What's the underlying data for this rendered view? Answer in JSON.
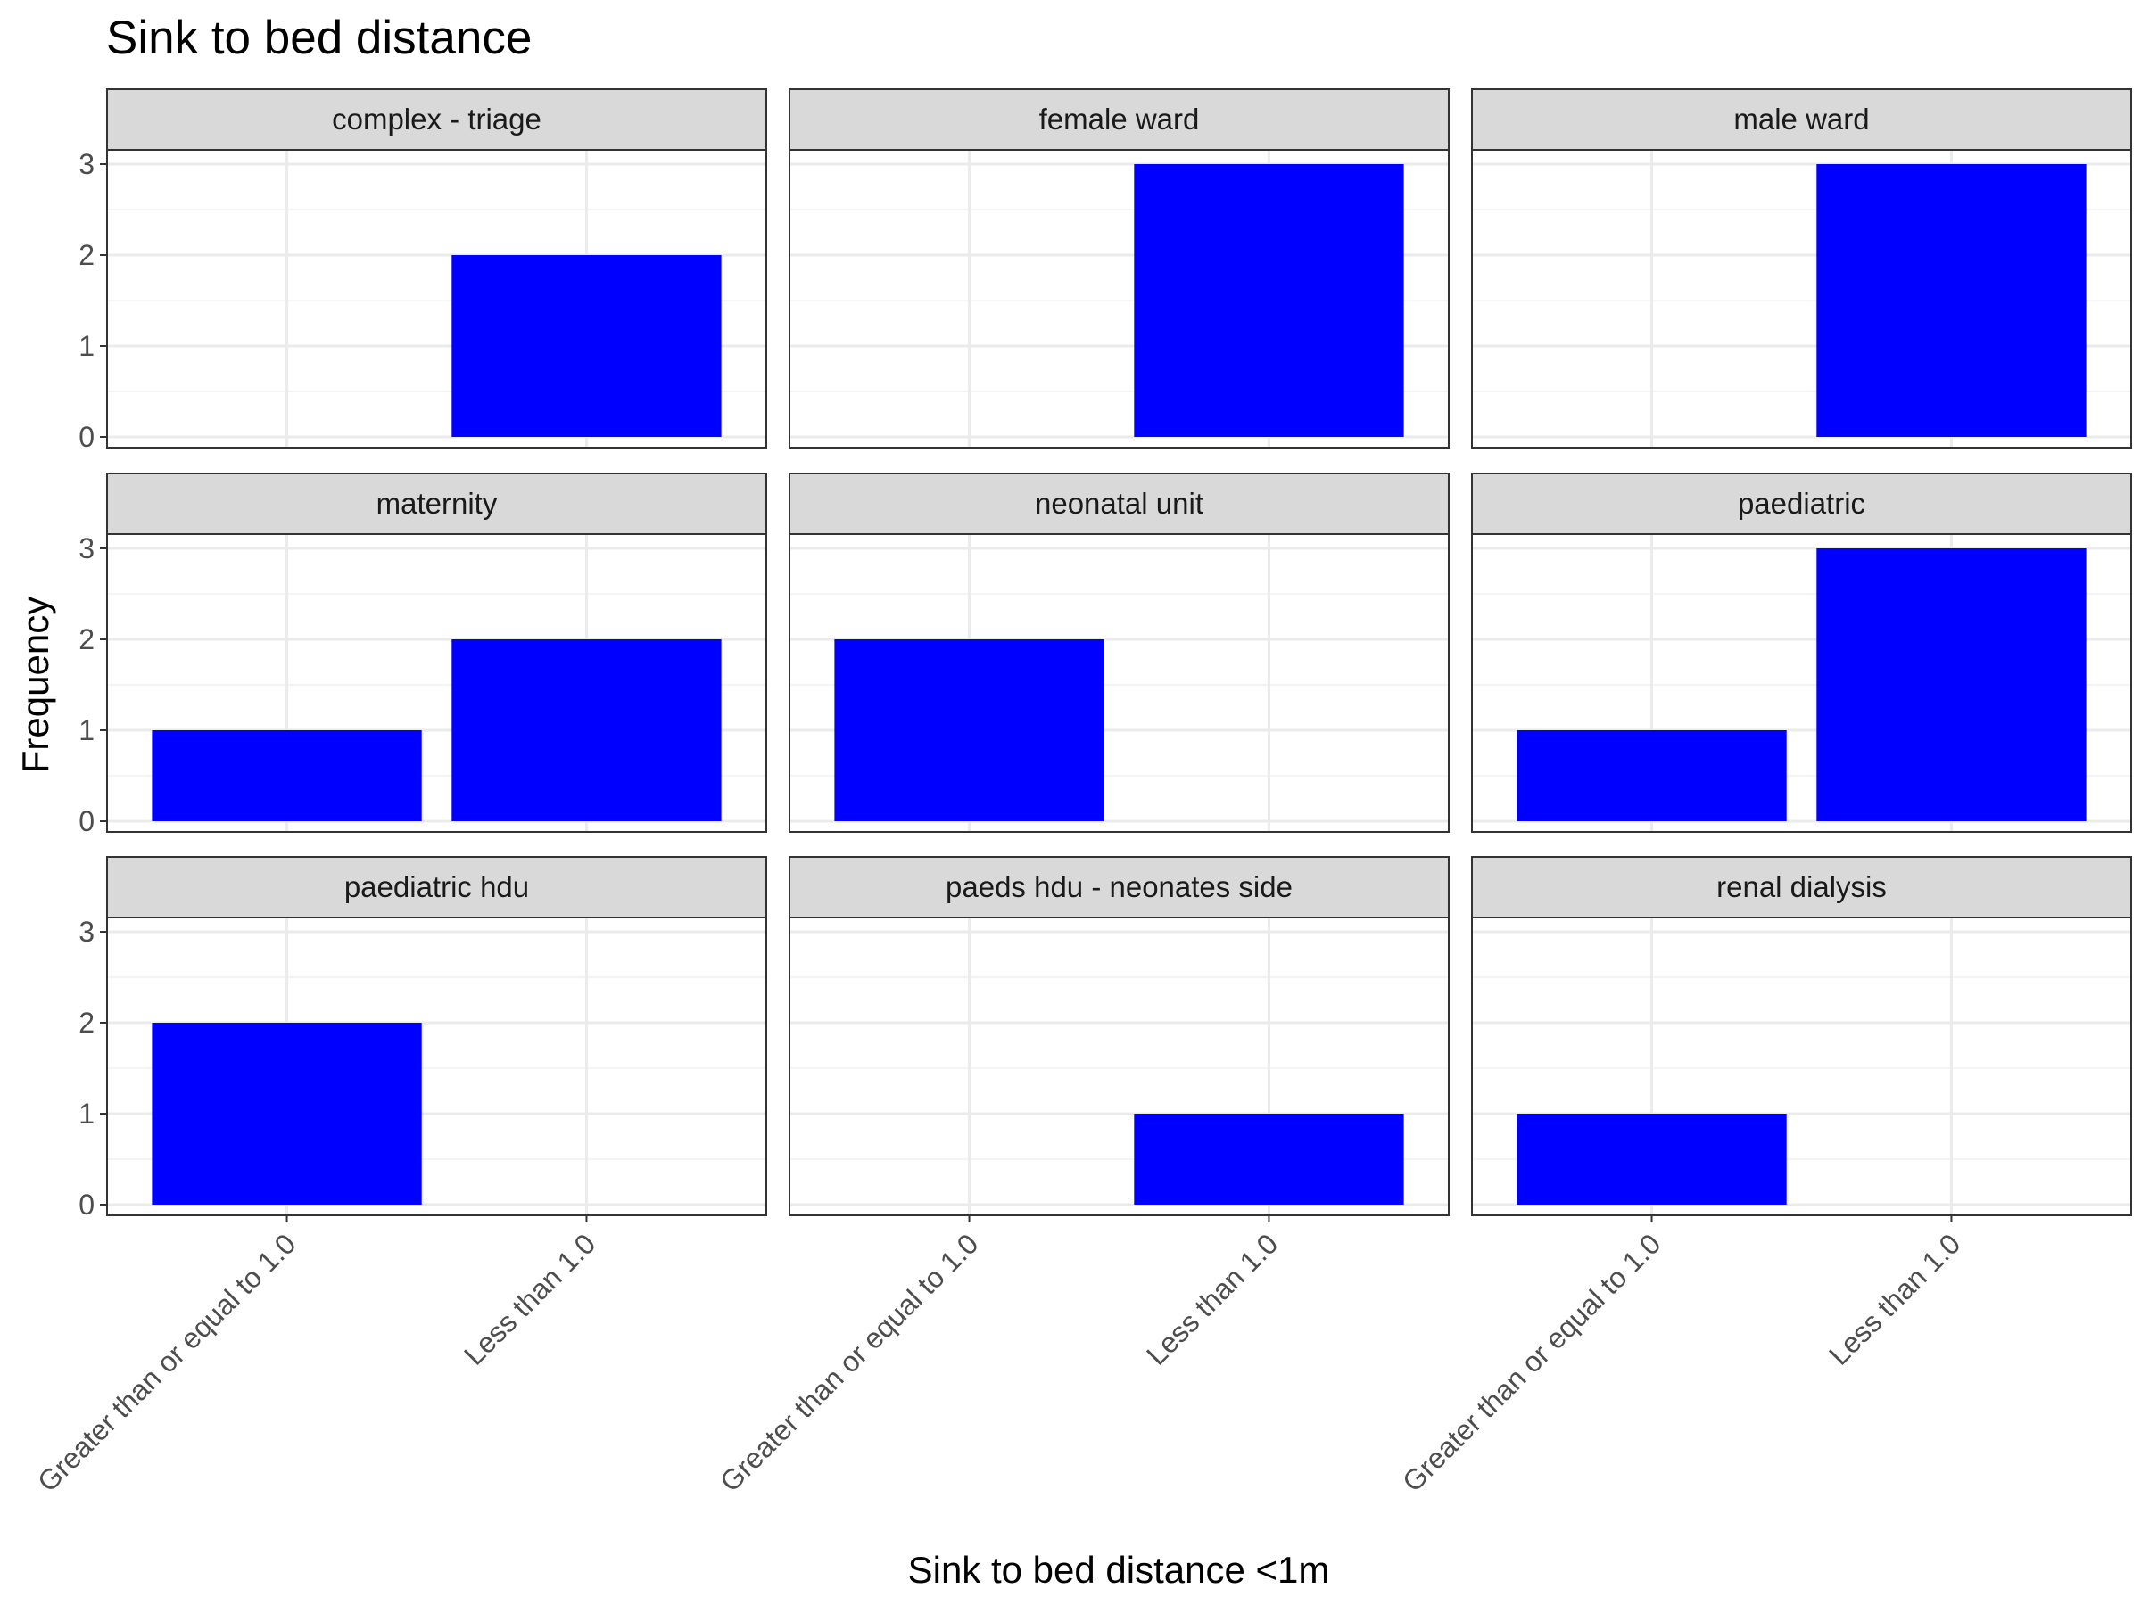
{
  "chart_data": {
    "type": "bar",
    "title": "Sink to bed distance",
    "xlabel": "Sink to bed distance <1m",
    "ylabel": "Frequency",
    "categories": [
      "Greater than or equal to 1.0",
      "Less than 1.0"
    ],
    "ylim": [
      0,
      3
    ],
    "yticks": [
      0,
      1,
      2,
      3
    ],
    "bar_color": "#0000ff",
    "grid": true,
    "facets": [
      {
        "name": "complex - triage",
        "values": [
          0,
          2
        ]
      },
      {
        "name": "female ward",
        "values": [
          0,
          3
        ]
      },
      {
        "name": "male ward",
        "values": [
          0,
          3
        ]
      },
      {
        "name": "maternity",
        "values": [
          1,
          2
        ]
      },
      {
        "name": "neonatal unit",
        "values": [
          2,
          0
        ]
      },
      {
        "name": "paediatric",
        "values": [
          1,
          3
        ]
      },
      {
        "name": "paediatric hdu",
        "values": [
          2,
          0
        ]
      },
      {
        "name": "paeds hdu - neonates side",
        "values": [
          0,
          1
        ]
      },
      {
        "name": "renal dialysis",
        "values": [
          1,
          0
        ]
      }
    ]
  }
}
